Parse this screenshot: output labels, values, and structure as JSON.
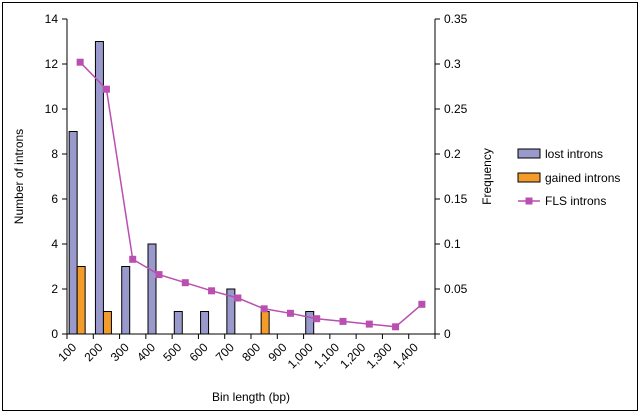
{
  "chart_data": {
    "type": "bar",
    "categories": [
      "100",
      "200",
      "300",
      "400",
      "500",
      "600",
      "700",
      "800",
      "900",
      "1,000",
      "1,100",
      "1,200",
      "1,300",
      "1,400"
    ],
    "series": [
      {
        "name": "lost introns",
        "kind": "bar",
        "axis": "left",
        "color": "#9999cc",
        "values": [
          9,
          13,
          3,
          4,
          1,
          1,
          2,
          0,
          0,
          1,
          0,
          0,
          0,
          0
        ]
      },
      {
        "name": "gained introns",
        "kind": "bar",
        "axis": "left",
        "color": "#f39c2b",
        "values": [
          3,
          1,
          0,
          0,
          0,
          0,
          0,
          1,
          0,
          0,
          0,
          0,
          0,
          0
        ]
      },
      {
        "name": "FLS introns",
        "kind": "line",
        "axis": "right",
        "color": "#b94fb0",
        "values": [
          0.302,
          0.272,
          0.083,
          0.066,
          0.057,
          0.048,
          0.04,
          0.028,
          0.023,
          0.017,
          0.014,
          0.011,
          0.008,
          0.033
        ]
      }
    ],
    "xlabel": "Bin length (bp)",
    "ylabel": "Number of introns",
    "y2label": "Frequency",
    "ylim": [
      0,
      14
    ],
    "y2lim": [
      0,
      0.35
    ],
    "yticks": [
      "0",
      "2",
      "4",
      "6",
      "8",
      "10",
      "12",
      "14"
    ],
    "y2ticks": [
      "0",
      "0.05",
      "0.1",
      "0.15",
      "0.2",
      "0.25",
      "0.3",
      "0.35"
    ],
    "grid": false,
    "legend": "right"
  }
}
